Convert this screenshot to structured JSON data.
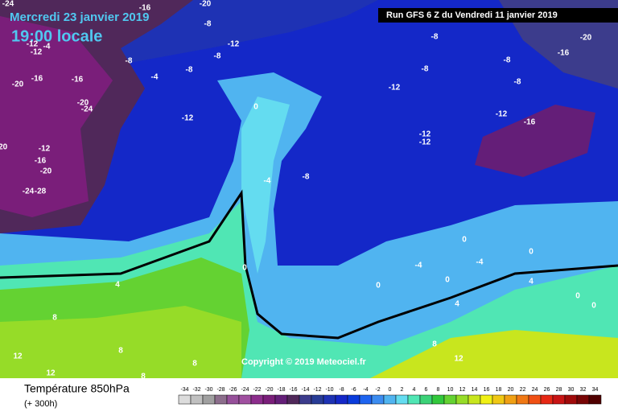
{
  "header": {
    "date": "Mercredi 23 janvier 2019",
    "time": "19:00 locale",
    "run": "Run GFS 6 Z du Vendredi 11 janvier 2019"
  },
  "copyright": "Copyright © 2019 Meteociel.fr",
  "footer": {
    "title": "Température 850hPa",
    "subtitle": "(+ 300h)"
  },
  "legend": {
    "values": [
      -34,
      -32,
      -30,
      -28,
      -26,
      -24,
      -22,
      -20,
      -18,
      -16,
      -14,
      -12,
      -10,
      -8,
      -6,
      -4,
      -2,
      0,
      2,
      4,
      6,
      8,
      10,
      12,
      14,
      16,
      18,
      20,
      22,
      24,
      26,
      28,
      30,
      32,
      34
    ],
    "colors": [
      "#dcdcdc",
      "#c0c0c0",
      "#a0a0a0",
      "#8c6e8c",
      "#96509a",
      "#a050a0",
      "#8c2d8c",
      "#7a1e7a",
      "#641e78",
      "#50285a",
      "#3c3c8c",
      "#283c96",
      "#1e32b4",
      "#1428c8",
      "#0a3cdc",
      "#1e64f0",
      "#3c8cf0",
      "#50b4f0",
      "#64dcf0",
      "#50e6b4",
      "#3cd278",
      "#32c83c",
      "#64d232",
      "#96dc28",
      "#c8e61e",
      "#f0f014",
      "#f0c814",
      "#f0a014",
      "#f07814",
      "#f05014",
      "#e62814",
      "#c81414",
      "#a00a0a",
      "#780505",
      "#500000"
    ]
  },
  "contour_labels": [
    "-24",
    "-20",
    "-16",
    "-20",
    "-16",
    "-8",
    "-12",
    "-8",
    "-8",
    "-8",
    "-8",
    "-8",
    "-12",
    "-4",
    "-12",
    "-8",
    "-4",
    "-8",
    "-16",
    "-16",
    "-20",
    "-12",
    "-20",
    "-24",
    "0",
    "-12",
    "-12",
    "-16",
    "-12",
    "-12",
    "-12",
    "-20",
    "-16",
    "-20",
    "-4",
    "-8",
    "-24",
    "-28",
    "0",
    "0",
    "-4",
    "-4",
    "0",
    "0",
    "0",
    "4",
    "4",
    "0",
    "0",
    "4",
    "8",
    "8",
    "12",
    "8",
    "12",
    "8",
    "12",
    "8"
  ]
}
